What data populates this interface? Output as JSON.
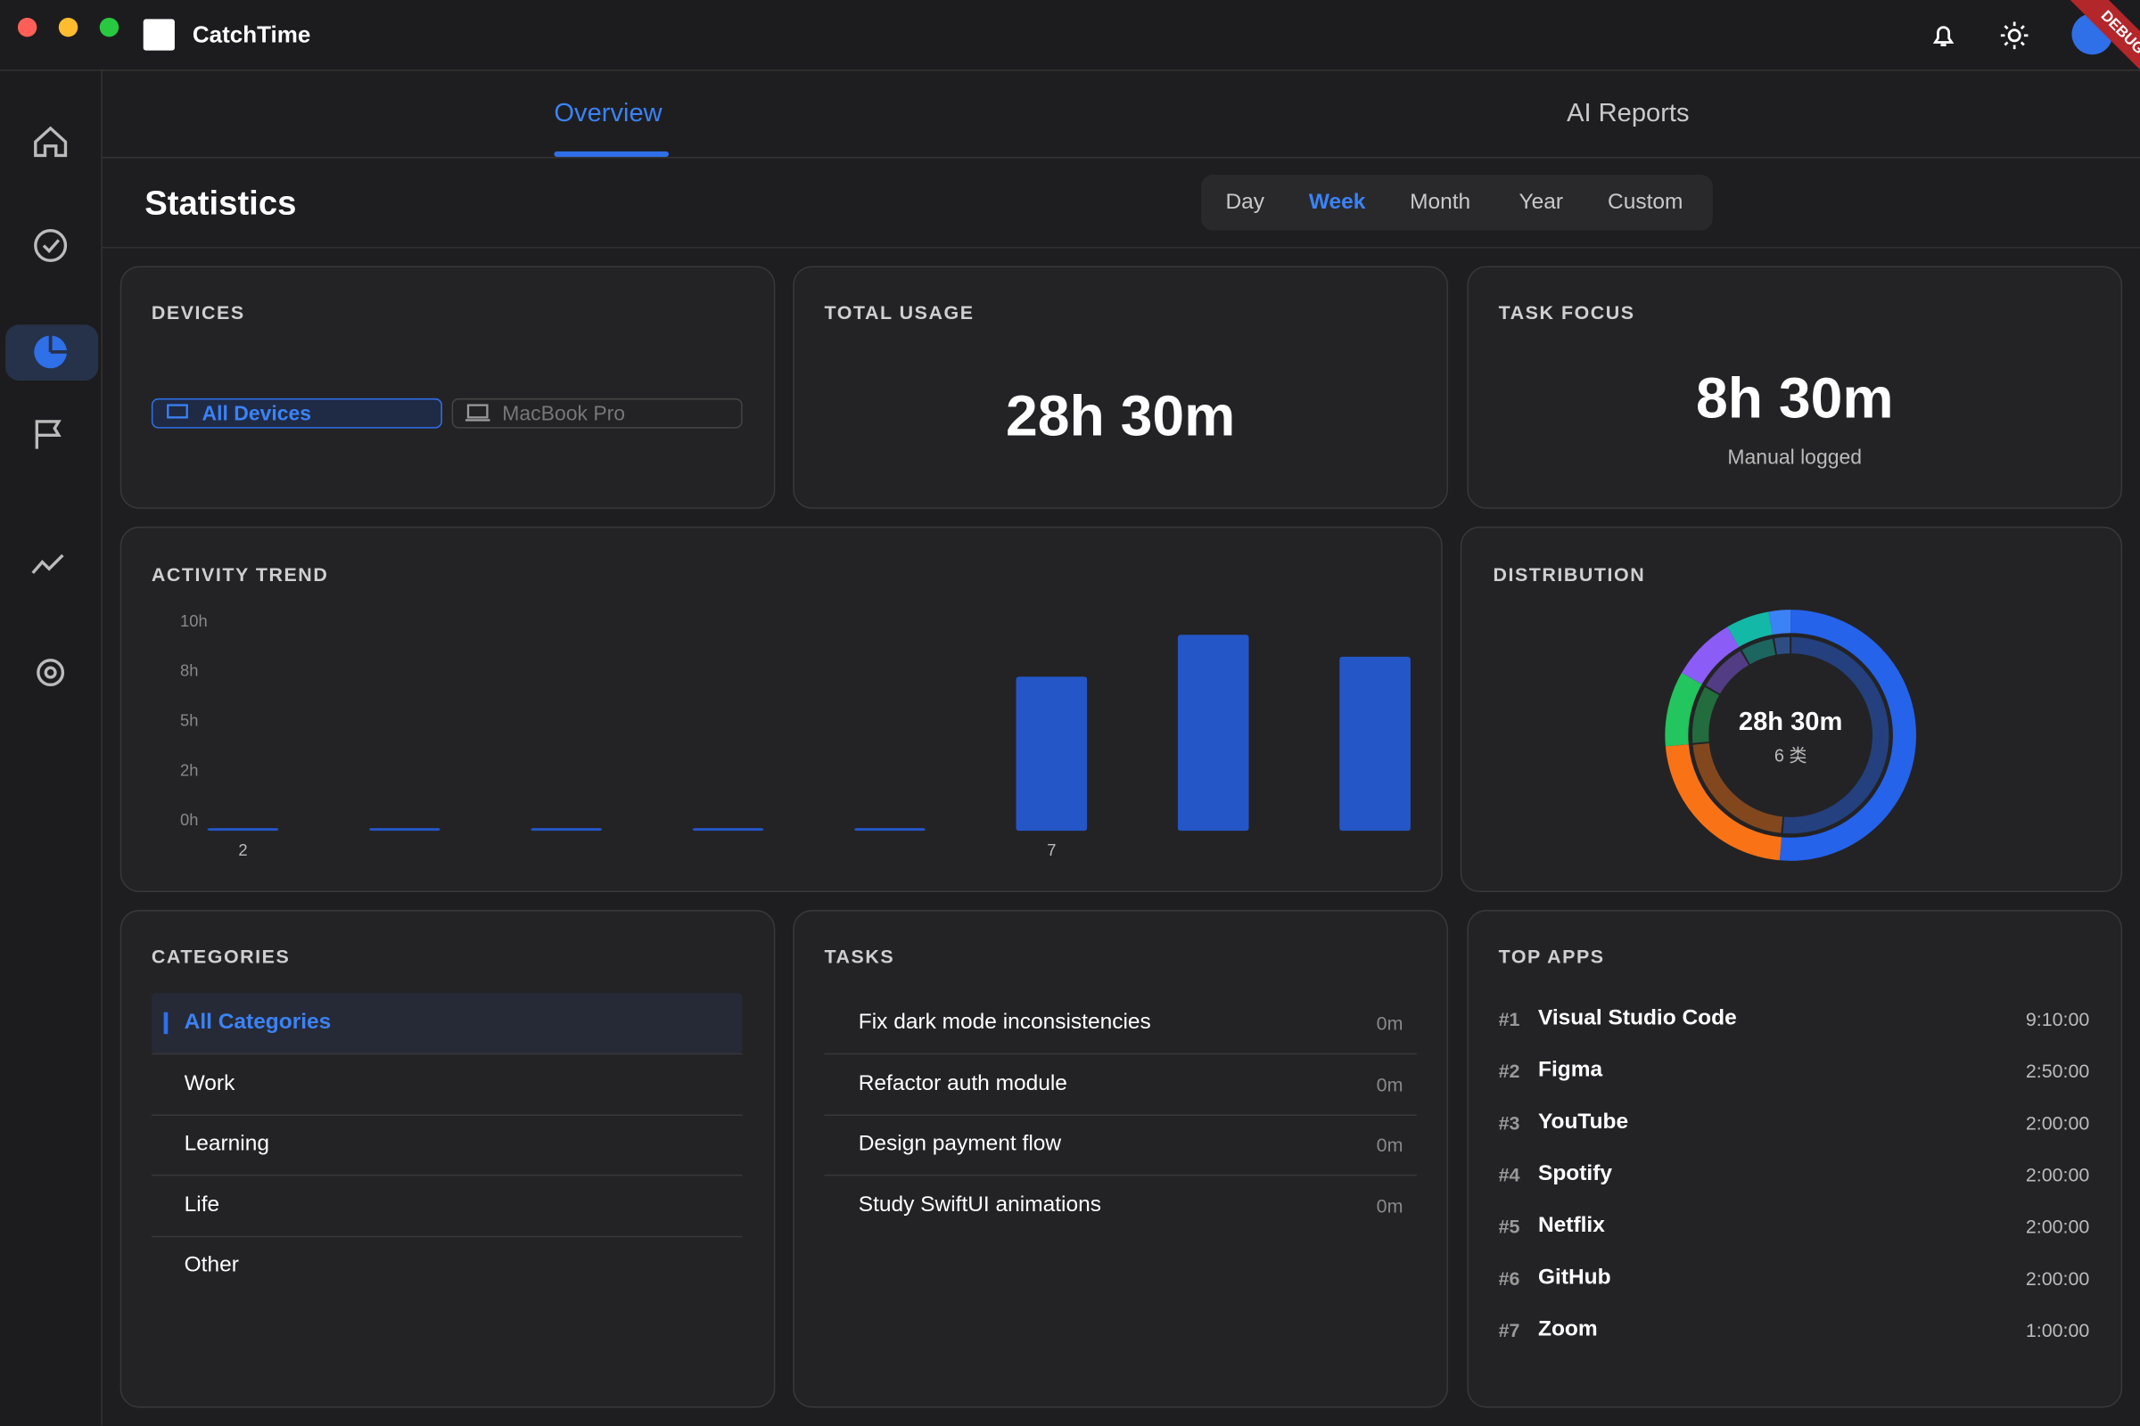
{
  "window": {
    "title": "CatchTime",
    "badge": "DEBUG"
  },
  "tabs": [
    "Overview",
    "AI Reports"
  ],
  "statistics": {
    "title": "Statistics",
    "ranges": [
      "Day",
      "Week",
      "Month",
      "Year",
      "Custom"
    ]
  },
  "devices": {
    "title": "DEVICES",
    "options": [
      "All Devices",
      "MacBook Pro"
    ]
  },
  "total_usage": {
    "title": "TOTAL USAGE",
    "value": "28h 30m"
  },
  "task_focus": {
    "title": "TASK FOCUS",
    "value": "8h 30m",
    "caption": "Manual logged"
  },
  "chart_data": [
    {
      "type": "bar",
      "title": "ACTIVITY TREND",
      "categories": [
        "2",
        null,
        null,
        null,
        null,
        "7",
        null,
        null
      ],
      "values": [
        0,
        0,
        0,
        0,
        0,
        7.6,
        9.7,
        8.6
      ],
      "color": "#2456c8",
      "ylim": [
        0,
        10
      ],
      "yticks": [
        {
          "value": 0,
          "label": "0h"
        },
        {
          "value": 2.5,
          "label": "2h"
        },
        {
          "value": 5,
          "label": "5h"
        },
        {
          "value": 7.5,
          "label": "8h"
        },
        {
          "value": 10,
          "label": "10h"
        }
      ],
      "grid": false
    },
    {
      "type": "donut",
      "title": "DISTRIBUTION",
      "center_label": "28h 30m",
      "center_sublabel": "6 类",
      "values": [
        51.4,
        22.2,
        9.7,
        8.3,
        5.6,
        2.8
      ],
      "colors": [
        "#2563eb",
        "#f97316",
        "#22c55e",
        "#8b5cf6",
        "#14b8a6",
        "#3b82f6"
      ]
    }
  ],
  "categories": {
    "title": "CATEGORIES",
    "items": [
      "All Categories",
      "Work",
      "Learning",
      "Life",
      "Other"
    ]
  },
  "tasks": {
    "title": "TASKS",
    "items": [
      {
        "name": "Fix dark mode inconsistencies",
        "time": "0m"
      },
      {
        "name": "Refactor auth module",
        "time": "0m"
      },
      {
        "name": "Design payment flow",
        "time": "0m"
      },
      {
        "name": "Study SwiftUI animations",
        "time": "0m"
      }
    ]
  },
  "top_apps": {
    "title": "TOP APPS",
    "items": [
      {
        "rank": "#1",
        "name": "Visual Studio Code",
        "time": "9:10:00"
      },
      {
        "rank": "#2",
        "name": "Figma",
        "time": "2:50:00"
      },
      {
        "rank": "#3",
        "name": "YouTube",
        "time": "2:00:00"
      },
      {
        "rank": "#4",
        "name": "Spotify",
        "time": "2:00:00"
      },
      {
        "rank": "#5",
        "name": "Netflix",
        "time": "2:00:00"
      },
      {
        "rank": "#6",
        "name": "GitHub",
        "time": "2:00:00"
      },
      {
        "rank": "#7",
        "name": "Zoom",
        "time": "1:00:00"
      }
    ]
  }
}
